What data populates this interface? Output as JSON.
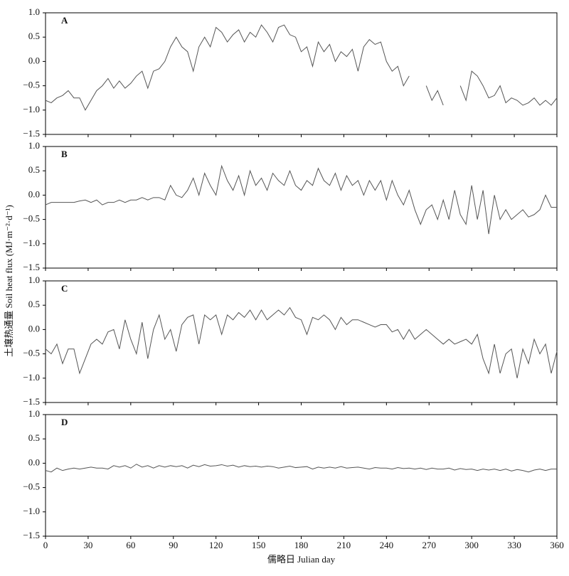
{
  "ylabel": "土壤热通量 Soil heat flux (MJ·m⁻²·d⁻¹)",
  "chart_data": [
    {
      "type": "line",
      "label": "A",
      "color": "#555555",
      "xlim": [
        0,
        360
      ],
      "ylim": [
        -1.5,
        1.0
      ],
      "xticks": [
        0,
        30,
        60,
        90,
        120,
        150,
        180,
        210,
        240,
        270,
        300,
        330,
        360
      ],
      "show_xtick_labels": false,
      "yticks": [
        {
          "value": 1.0,
          "label": "1.0"
        },
        0.5,
        {
          "value": 0.0,
          "label": "0.0"
        },
        {
          "value": -0.5,
          "label": "−0.5"
        },
        {
          "value": -1.0,
          "label": "−1.0"
        },
        {
          "value": -1.5,
          "label": "−1.5"
        }
      ],
      "x": [
        0,
        4,
        8,
        12,
        16,
        20,
        24,
        28,
        32,
        36,
        40,
        44,
        48,
        52,
        56,
        60,
        64,
        68,
        72,
        76,
        80,
        84,
        88,
        92,
        96,
        100,
        104,
        108,
        112,
        116,
        120,
        124,
        128,
        132,
        136,
        140,
        144,
        148,
        152,
        156,
        160,
        164,
        168,
        172,
        176,
        180,
        184,
        188,
        192,
        196,
        200,
        204,
        208,
        212,
        216,
        220,
        224,
        228,
        232,
        236,
        240,
        244,
        248,
        252,
        256,
        260,
        264,
        268,
        272,
        276,
        280,
        284,
        288,
        292,
        296,
        300,
        304,
        308,
        312,
        316,
        320,
        324,
        328,
        332,
        336,
        340,
        344,
        348,
        352,
        356,
        360
      ],
      "values": [
        -0.8,
        -0.85,
        -0.75,
        -0.7,
        -0.6,
        -0.75,
        -0.75,
        -1.0,
        -0.8,
        -0.6,
        -0.5,
        -0.35,
        -0.55,
        -0.4,
        -0.55,
        -0.45,
        -0.3,
        -0.2,
        -0.55,
        -0.2,
        -0.15,
        0.0,
        0.3,
        0.5,
        0.3,
        0.2,
        -0.2,
        0.3,
        0.5,
        0.3,
        0.7,
        0.6,
        0.4,
        0.55,
        0.65,
        0.4,
        0.6,
        0.5,
        0.75,
        0.6,
        0.4,
        0.7,
        0.75,
        0.55,
        0.5,
        0.2,
        0.3,
        -0.1,
        0.4,
        0.2,
        0.35,
        0.0,
        0.2,
        0.1,
        0.25,
        -0.2,
        0.3,
        0.45,
        0.35,
        0.4,
        0.0,
        -0.2,
        -0.1,
        -0.5,
        -0.3,
        null,
        null,
        -0.5,
        -0.8,
        -0.6,
        -0.9,
        null,
        null,
        -0.5,
        -0.8,
        -0.2,
        -0.3,
        -0.5,
        -0.75,
        -0.7,
        -0.5,
        -0.85,
        -0.75,
        -0.8,
        -0.9,
        -0.85,
        -0.75,
        -0.9,
        -0.8,
        -0.9,
        -0.75
      ]
    },
    {
      "type": "line",
      "label": "B",
      "color": "#555555",
      "xlim": [
        0,
        360
      ],
      "ylim": [
        -1.5,
        1.0
      ],
      "xticks": [
        0,
        30,
        60,
        90,
        120,
        150,
        180,
        210,
        240,
        270,
        300,
        330,
        360
      ],
      "show_xtick_labels": false,
      "yticks": [
        {
          "value": 1.0,
          "label": "1.0"
        },
        0.5,
        {
          "value": 0.0,
          "label": "0.0"
        },
        {
          "value": -0.5,
          "label": "−0.5"
        },
        {
          "value": -1.0,
          "label": "−1.0"
        },
        {
          "value": -1.5,
          "label": "−1.5"
        }
      ],
      "x": [
        0,
        4,
        8,
        12,
        16,
        20,
        24,
        28,
        32,
        36,
        40,
        44,
        48,
        52,
        56,
        60,
        64,
        68,
        72,
        76,
        80,
        84,
        88,
        92,
        96,
        100,
        104,
        108,
        112,
        116,
        120,
        124,
        128,
        132,
        136,
        140,
        144,
        148,
        152,
        156,
        160,
        164,
        168,
        172,
        176,
        180,
        184,
        188,
        192,
        196,
        200,
        204,
        208,
        212,
        216,
        220,
        224,
        228,
        232,
        236,
        240,
        244,
        248,
        252,
        256,
        260,
        264,
        268,
        272,
        276,
        280,
        284,
        288,
        292,
        296,
        300,
        304,
        308,
        312,
        316,
        320,
        324,
        328,
        332,
        336,
        340,
        344,
        348,
        352,
        356,
        360
      ],
      "values": [
        -0.2,
        -0.15,
        -0.15,
        -0.15,
        -0.15,
        -0.15,
        -0.12,
        -0.1,
        -0.15,
        -0.1,
        -0.2,
        -0.15,
        -0.15,
        -0.1,
        -0.15,
        -0.1,
        -0.1,
        -0.05,
        -0.1,
        -0.05,
        -0.05,
        -0.1,
        0.2,
        0.0,
        -0.05,
        0.1,
        0.35,
        0.0,
        0.45,
        0.2,
        0.0,
        0.6,
        0.3,
        0.1,
        0.4,
        0.0,
        0.5,
        0.2,
        0.35,
        0.1,
        0.45,
        0.3,
        0.2,
        0.5,
        0.2,
        0.1,
        0.3,
        0.2,
        0.55,
        0.3,
        0.2,
        0.45,
        0.1,
        0.4,
        0.2,
        0.3,
        0.0,
        0.3,
        0.1,
        0.3,
        -0.1,
        0.3,
        0.0,
        -0.2,
        0.1,
        -0.3,
        -0.6,
        -0.3,
        -0.2,
        -0.5,
        -0.1,
        -0.5,
        0.1,
        -0.4,
        -0.6,
        0.2,
        -0.5,
        0.1,
        -0.8,
        0.0,
        -0.5,
        -0.3,
        -0.5,
        -0.4,
        -0.3,
        -0.45,
        -0.4,
        -0.3,
        0.0,
        -0.25,
        -0.25
      ]
    },
    {
      "type": "line",
      "label": "C",
      "color": "#555555",
      "xlim": [
        0,
        360
      ],
      "ylim": [
        -1.5,
        1.0
      ],
      "xticks": [
        0,
        30,
        60,
        90,
        120,
        150,
        180,
        210,
        240,
        270,
        300,
        330,
        360
      ],
      "show_xtick_labels": false,
      "yticks": [
        {
          "value": 1.0,
          "label": "1.0"
        },
        0.5,
        {
          "value": 0.0,
          "label": "0.0"
        },
        {
          "value": -0.5,
          "label": "−0.5"
        },
        {
          "value": -1.0,
          "label": "−1.0"
        },
        {
          "value": -1.5,
          "label": "−1.5"
        }
      ],
      "x": [
        0,
        4,
        8,
        12,
        16,
        20,
        24,
        28,
        32,
        36,
        40,
        44,
        48,
        52,
        56,
        60,
        64,
        68,
        72,
        76,
        80,
        84,
        88,
        92,
        96,
        100,
        104,
        108,
        112,
        116,
        120,
        124,
        128,
        132,
        136,
        140,
        144,
        148,
        152,
        156,
        160,
        164,
        168,
        172,
        176,
        180,
        184,
        188,
        192,
        196,
        200,
        204,
        208,
        212,
        216,
        220,
        224,
        228,
        232,
        236,
        240,
        244,
        248,
        252,
        256,
        260,
        264,
        268,
        272,
        276,
        280,
        284,
        288,
        292,
        296,
        300,
        304,
        308,
        312,
        316,
        320,
        324,
        328,
        332,
        336,
        340,
        344,
        348,
        352,
        356,
        360
      ],
      "values": [
        -0.4,
        -0.5,
        -0.3,
        -0.7,
        -0.4,
        -0.4,
        -0.9,
        -0.6,
        -0.3,
        -0.2,
        -0.3,
        -0.05,
        0.0,
        -0.4,
        0.2,
        -0.2,
        -0.5,
        0.15,
        -0.6,
        0.0,
        0.3,
        -0.2,
        0.0,
        -0.45,
        0.1,
        0.25,
        0.3,
        -0.3,
        0.3,
        0.2,
        0.3,
        -0.1,
        0.3,
        0.2,
        0.35,
        0.25,
        0.4,
        0.2,
        0.4,
        0.2,
        0.3,
        0.4,
        0.3,
        0.45,
        0.25,
        0.2,
        -0.1,
        0.25,
        0.2,
        0.3,
        0.2,
        0.0,
        0.25,
        0.1,
        0.2,
        0.2,
        0.15,
        0.1,
        0.05,
        0.1,
        0.1,
        -0.05,
        0.0,
        -0.2,
        0.0,
        -0.2,
        -0.1,
        0.0,
        -0.1,
        -0.2,
        -0.3,
        -0.2,
        -0.3,
        -0.25,
        -0.2,
        -0.3,
        -0.1,
        -0.6,
        -0.9,
        -0.3,
        -0.9,
        -0.5,
        -0.4,
        -1.0,
        -0.4,
        -0.7,
        -0.2,
        -0.5,
        -0.3,
        -0.9,
        -0.45
      ]
    },
    {
      "type": "line",
      "label": "D",
      "color": "#555555",
      "xlim": [
        0,
        360
      ],
      "ylim": [
        -1.5,
        1.0
      ],
      "xticks": [
        0,
        30,
        60,
        90,
        120,
        150,
        180,
        210,
        240,
        270,
        300,
        330,
        360
      ],
      "show_xtick_labels": true,
      "xlabel": "儒略日 Julian day",
      "yticks": [
        {
          "value": 1.0,
          "label": "1.0"
        },
        0.5,
        {
          "value": 0.0,
          "label": "0.0"
        },
        {
          "value": -0.5,
          "label": "−0.5"
        },
        {
          "value": -1.0,
          "label": "−1.0"
        },
        {
          "value": -1.5,
          "label": "−1.5"
        }
      ],
      "x": [
        0,
        4,
        8,
        12,
        16,
        20,
        24,
        28,
        32,
        36,
        40,
        44,
        48,
        52,
        56,
        60,
        64,
        68,
        72,
        76,
        80,
        84,
        88,
        92,
        96,
        100,
        104,
        108,
        112,
        116,
        120,
        124,
        128,
        132,
        136,
        140,
        144,
        148,
        152,
        156,
        160,
        164,
        168,
        172,
        176,
        180,
        184,
        188,
        192,
        196,
        200,
        204,
        208,
        212,
        216,
        220,
        224,
        228,
        232,
        236,
        240,
        244,
        248,
        252,
        256,
        260,
        264,
        268,
        272,
        276,
        280,
        284,
        288,
        292,
        296,
        300,
        304,
        308,
        312,
        316,
        320,
        324,
        328,
        332,
        336,
        340,
        344,
        348,
        352,
        356,
        360
      ],
      "values": [
        -0.15,
        -0.18,
        -0.1,
        -0.15,
        -0.12,
        -0.1,
        -0.12,
        -0.1,
        -0.08,
        -0.1,
        -0.1,
        -0.12,
        -0.05,
        -0.08,
        -0.05,
        -0.1,
        -0.02,
        -0.08,
        -0.05,
        -0.1,
        -0.05,
        -0.08,
        -0.05,
        -0.07,
        -0.05,
        -0.1,
        -0.04,
        -0.07,
        -0.03,
        -0.06,
        -0.05,
        -0.03,
        -0.06,
        -0.04,
        -0.08,
        -0.05,
        -0.07,
        -0.06,
        -0.08,
        -0.06,
        -0.07,
        -0.1,
        -0.08,
        -0.06,
        -0.09,
        -0.08,
        -0.07,
        -0.12,
        -0.08,
        -0.1,
        -0.08,
        -0.1,
        -0.07,
        -0.1,
        -0.09,
        -0.08,
        -0.1,
        -0.12,
        -0.09,
        -0.1,
        -0.1,
        -0.12,
        -0.09,
        -0.11,
        -0.1,
        -0.12,
        -0.1,
        -0.13,
        -0.1,
        -0.12,
        -0.12,
        -0.1,
        -0.14,
        -0.11,
        -0.13,
        -0.12,
        -0.15,
        -0.12,
        -0.14,
        -0.12,
        -0.15,
        -0.12,
        -0.16,
        -0.13,
        -0.15,
        -0.18,
        -0.14,
        -0.12,
        -0.15,
        -0.12,
        -0.12
      ]
    }
  ]
}
